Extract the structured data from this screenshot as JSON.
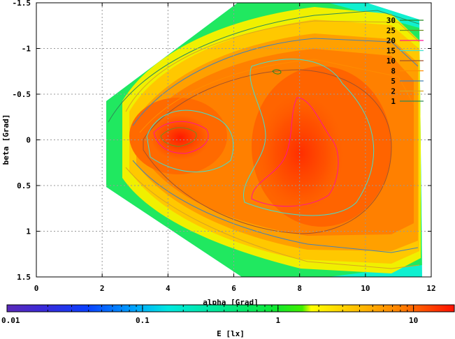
{
  "chart_data": {
    "type": "heatmap",
    "xlabel": "alpha [Grad]",
    "ylabel": "beta [Grad]",
    "xlim": [
      0,
      12
    ],
    "ylim": [
      -1.5,
      1.5
    ],
    "y_axis_inverted": true,
    "x_ticks": [
      "0",
      "2",
      "4",
      "6",
      "8",
      "10",
      "12"
    ],
    "y_ticks": [
      "-1.5",
      "-1",
      "-0.5",
      "0",
      "0.5",
      "1",
      "1.5"
    ],
    "grid": true,
    "colorbar": {
      "label": "E [lx]",
      "scale": "log",
      "range": [
        0.01,
        20
      ],
      "ticks": [
        "0.01",
        "0.1",
        "1",
        "10"
      ]
    },
    "contour_levels": [
      {
        "level": "30",
        "color": "#228b22"
      },
      {
        "level": "25",
        "color": "#6b8e23"
      },
      {
        "level": "20",
        "color": "#ff1493"
      },
      {
        "level": "15",
        "color": "#40e0d0"
      },
      {
        "level": "10",
        "color": "#a0522d"
      },
      {
        "level": "8",
        "color": "#ff8c00"
      },
      {
        "level": "5",
        "color": "#4682b4"
      },
      {
        "level": "2",
        "color": "#daa520"
      },
      {
        "level": "1",
        "color": "#2e8b57"
      }
    ],
    "legend_position": "top-right",
    "field_description_levels": {
      "peak_near": [
        4.3,
        0.0
      ],
      "second_peak_near": [
        8.3,
        0.2
      ]
    }
  }
}
